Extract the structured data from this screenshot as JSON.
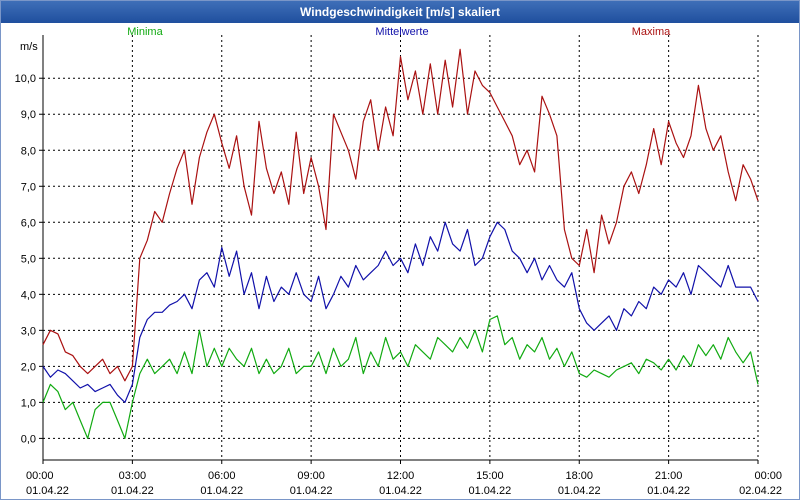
{
  "window": {
    "title": "Windgeschwindigkeit [m/s] skaliert"
  },
  "chart_data": {
    "type": "line",
    "title": "Windgeschwindigkeit [m/s] skaliert",
    "ylabel": "m/s",
    "xlabel": "",
    "ylim": [
      -0.6,
      11.2
    ],
    "xlim": [
      0,
      24
    ],
    "grid": true,
    "legend_position": "top",
    "y_ticks": [
      0,
      1,
      2,
      3,
      4,
      5,
      6,
      7,
      8,
      9,
      10
    ],
    "y_tick_labels": [
      "0,0",
      "1,0",
      "2,0",
      "3,0",
      "4,0",
      "5,0",
      "6,0",
      "7,0",
      "8,0",
      "9,0",
      "10,0"
    ],
    "x_ticks": [
      0,
      3,
      6,
      9,
      12,
      15,
      18,
      21,
      24
    ],
    "x_tick_labels": [
      [
        "00:00",
        "01.04.22"
      ],
      [
        "03:00",
        "01.04.22"
      ],
      [
        "06:00",
        "01.04.22"
      ],
      [
        "09:00",
        "01.04.22"
      ],
      [
        "12:00",
        "01.04.22"
      ],
      [
        "15:00",
        "01.04.22"
      ],
      [
        "18:00",
        "01.04.22"
      ],
      [
        "21:00",
        "01.04.22"
      ],
      [
        "00:00",
        "02.04.22"
      ]
    ],
    "colors": {
      "Minima": "#11aa11",
      "Mittelwerte": "#1111aa",
      "Maxima": "#aa1111",
      "grid": "#000000",
      "axis": "#000000"
    },
    "series": [
      {
        "name": "Minima",
        "times": [
          0.0,
          0.25,
          0.5,
          0.75,
          1.0,
          1.25,
          1.5,
          1.75,
          2.0,
          2.25,
          2.5,
          2.75,
          3.0,
          3.25,
          3.5,
          3.75,
          4.0,
          4.25,
          4.5,
          4.75,
          5.0,
          5.25,
          5.5,
          5.75,
          6.0,
          6.25,
          6.5,
          6.75,
          7.0,
          7.25,
          7.5,
          7.75,
          8.0,
          8.25,
          8.5,
          8.75,
          9.0,
          9.25,
          9.5,
          9.75,
          10.0,
          10.25,
          10.5,
          10.75,
          11.0,
          11.25,
          11.5,
          11.75,
          12.0,
          12.25,
          12.5,
          12.75,
          13.0,
          13.25,
          13.5,
          13.75,
          14.0,
          14.25,
          14.5,
          14.75,
          15.0,
          15.25,
          15.5,
          15.75,
          16.0,
          16.25,
          16.5,
          16.75,
          17.0,
          17.25,
          17.5,
          17.75,
          18.0,
          18.25,
          18.5,
          18.75,
          19.0,
          19.25,
          19.5,
          19.75,
          20.0,
          20.25,
          20.5,
          20.75,
          21.0,
          21.25,
          21.5,
          21.75,
          22.0,
          22.25,
          22.5,
          22.75,
          23.0,
          23.25,
          23.5,
          23.75,
          24.0
        ],
        "values": [
          1.0,
          1.5,
          1.3,
          0.8,
          1.0,
          0.5,
          0.0,
          0.8,
          1.0,
          1.0,
          0.5,
          0.0,
          1.0,
          1.8,
          2.2,
          1.8,
          2.0,
          2.2,
          1.8,
          2.4,
          1.8,
          3.0,
          2.0,
          2.5,
          2.0,
          2.5,
          2.2,
          2.0,
          2.5,
          1.8,
          2.2,
          1.8,
          2.0,
          2.5,
          1.8,
          2.0,
          2.0,
          2.4,
          1.8,
          2.5,
          2.0,
          2.2,
          2.8,
          1.8,
          2.4,
          2.0,
          2.8,
          2.2,
          2.4,
          2.0,
          2.6,
          2.4,
          2.2,
          2.8,
          2.6,
          2.4,
          2.8,
          2.5,
          3.0,
          2.4,
          3.3,
          3.4,
          2.6,
          2.8,
          2.2,
          2.6,
          2.4,
          2.8,
          2.2,
          2.5,
          2.0,
          2.4,
          1.8,
          1.7,
          1.9,
          1.8,
          1.7,
          1.9,
          2.0,
          2.1,
          1.8,
          2.2,
          2.1,
          1.9,
          2.2,
          1.9,
          2.3,
          2.0,
          2.6,
          2.3,
          2.6,
          2.2,
          2.8,
          2.4,
          2.1,
          2.4,
          1.5
        ]
      },
      {
        "name": "Mittelwerte",
        "times": [
          0.0,
          0.25,
          0.5,
          0.75,
          1.0,
          1.25,
          1.5,
          1.75,
          2.0,
          2.25,
          2.5,
          2.75,
          3.0,
          3.25,
          3.5,
          3.75,
          4.0,
          4.25,
          4.5,
          4.75,
          5.0,
          5.25,
          5.5,
          5.75,
          6.0,
          6.25,
          6.5,
          6.75,
          7.0,
          7.25,
          7.5,
          7.75,
          8.0,
          8.25,
          8.5,
          8.75,
          9.0,
          9.25,
          9.5,
          9.75,
          10.0,
          10.25,
          10.5,
          10.75,
          11.0,
          11.25,
          11.5,
          11.75,
          12.0,
          12.25,
          12.5,
          12.75,
          13.0,
          13.25,
          13.5,
          13.75,
          14.0,
          14.25,
          14.5,
          14.75,
          15.0,
          15.25,
          15.5,
          15.75,
          16.0,
          16.25,
          16.5,
          16.75,
          17.0,
          17.25,
          17.5,
          17.75,
          18.0,
          18.25,
          18.5,
          18.75,
          19.0,
          19.25,
          19.5,
          19.75,
          20.0,
          20.25,
          20.5,
          20.75,
          21.0,
          21.25,
          21.5,
          21.75,
          22.0,
          22.25,
          22.5,
          22.75,
          23.0,
          23.25,
          23.5,
          23.75,
          24.0
        ],
        "values": [
          2.0,
          1.7,
          1.9,
          1.8,
          1.6,
          1.4,
          1.5,
          1.3,
          1.4,
          1.5,
          1.2,
          1.0,
          1.5,
          2.8,
          3.3,
          3.5,
          3.5,
          3.7,
          3.8,
          4.0,
          3.6,
          4.4,
          4.6,
          4.2,
          5.3,
          4.5,
          5.2,
          4.0,
          4.6,
          3.6,
          4.5,
          3.8,
          4.2,
          4.0,
          4.6,
          4.0,
          3.8,
          4.5,
          3.6,
          4.0,
          4.5,
          4.2,
          4.8,
          4.4,
          4.6,
          4.8,
          5.2,
          4.8,
          5.0,
          4.6,
          5.4,
          4.8,
          5.6,
          5.2,
          6.0,
          5.4,
          5.2,
          5.8,
          4.8,
          5.0,
          5.6,
          6.0,
          5.8,
          5.2,
          5.0,
          4.6,
          5.0,
          4.4,
          4.8,
          4.4,
          4.2,
          4.6,
          3.6,
          3.2,
          3.0,
          3.2,
          3.4,
          3.0,
          3.6,
          3.4,
          3.8,
          3.6,
          4.2,
          4.0,
          4.4,
          4.2,
          4.6,
          4.0,
          4.8,
          4.6,
          4.4,
          4.2,
          4.8,
          4.2,
          4.2,
          4.2,
          3.8
        ]
      },
      {
        "name": "Maxima",
        "times": [
          0.0,
          0.25,
          0.5,
          0.75,
          1.0,
          1.25,
          1.5,
          1.75,
          2.0,
          2.25,
          2.5,
          2.75,
          3.0,
          3.25,
          3.5,
          3.75,
          4.0,
          4.25,
          4.5,
          4.75,
          5.0,
          5.25,
          5.5,
          5.75,
          6.0,
          6.25,
          6.5,
          6.75,
          7.0,
          7.25,
          7.5,
          7.75,
          8.0,
          8.25,
          8.5,
          8.75,
          9.0,
          9.25,
          9.5,
          9.75,
          10.0,
          10.25,
          10.5,
          10.75,
          11.0,
          11.25,
          11.5,
          11.75,
          12.0,
          12.25,
          12.5,
          12.75,
          13.0,
          13.25,
          13.5,
          13.75,
          14.0,
          14.25,
          14.5,
          14.75,
          15.0,
          15.25,
          15.5,
          15.75,
          16.0,
          16.25,
          16.5,
          16.75,
          17.0,
          17.25,
          17.5,
          17.75,
          18.0,
          18.25,
          18.5,
          18.75,
          19.0,
          19.25,
          19.5,
          19.75,
          20.0,
          20.25,
          20.5,
          20.75,
          21.0,
          21.25,
          21.5,
          21.75,
          22.0,
          22.25,
          22.5,
          22.75,
          23.0,
          23.25,
          23.5,
          23.75,
          24.0
        ],
        "values": [
          2.6,
          3.0,
          2.9,
          2.4,
          2.3,
          2.0,
          1.8,
          2.0,
          2.2,
          1.8,
          2.0,
          1.6,
          2.0,
          5.0,
          5.5,
          6.3,
          6.0,
          6.8,
          7.5,
          8.0,
          6.5,
          7.8,
          8.5,
          9.0,
          8.2,
          7.5,
          8.4,
          7.0,
          6.2,
          8.8,
          7.5,
          6.8,
          7.4,
          6.5,
          8.5,
          6.8,
          7.8,
          7.0,
          5.8,
          9.0,
          8.5,
          8.0,
          7.2,
          8.8,
          9.4,
          8.0,
          9.2,
          8.4,
          10.6,
          9.4,
          10.2,
          9.0,
          10.4,
          9.0,
          10.5,
          9.2,
          10.8,
          9.0,
          10.2,
          9.8,
          9.6,
          9.2,
          8.8,
          8.4,
          7.6,
          8.0,
          7.4,
          9.5,
          9.0,
          8.4,
          5.8,
          5.0,
          4.8,
          5.8,
          4.6,
          6.2,
          5.4,
          6.0,
          7.0,
          7.4,
          6.8,
          7.6,
          8.6,
          7.6,
          8.8,
          8.2,
          7.8,
          8.4,
          9.8,
          8.6,
          8.0,
          8.4,
          7.4,
          6.6,
          7.6,
          7.2,
          6.6
        ]
      }
    ]
  }
}
